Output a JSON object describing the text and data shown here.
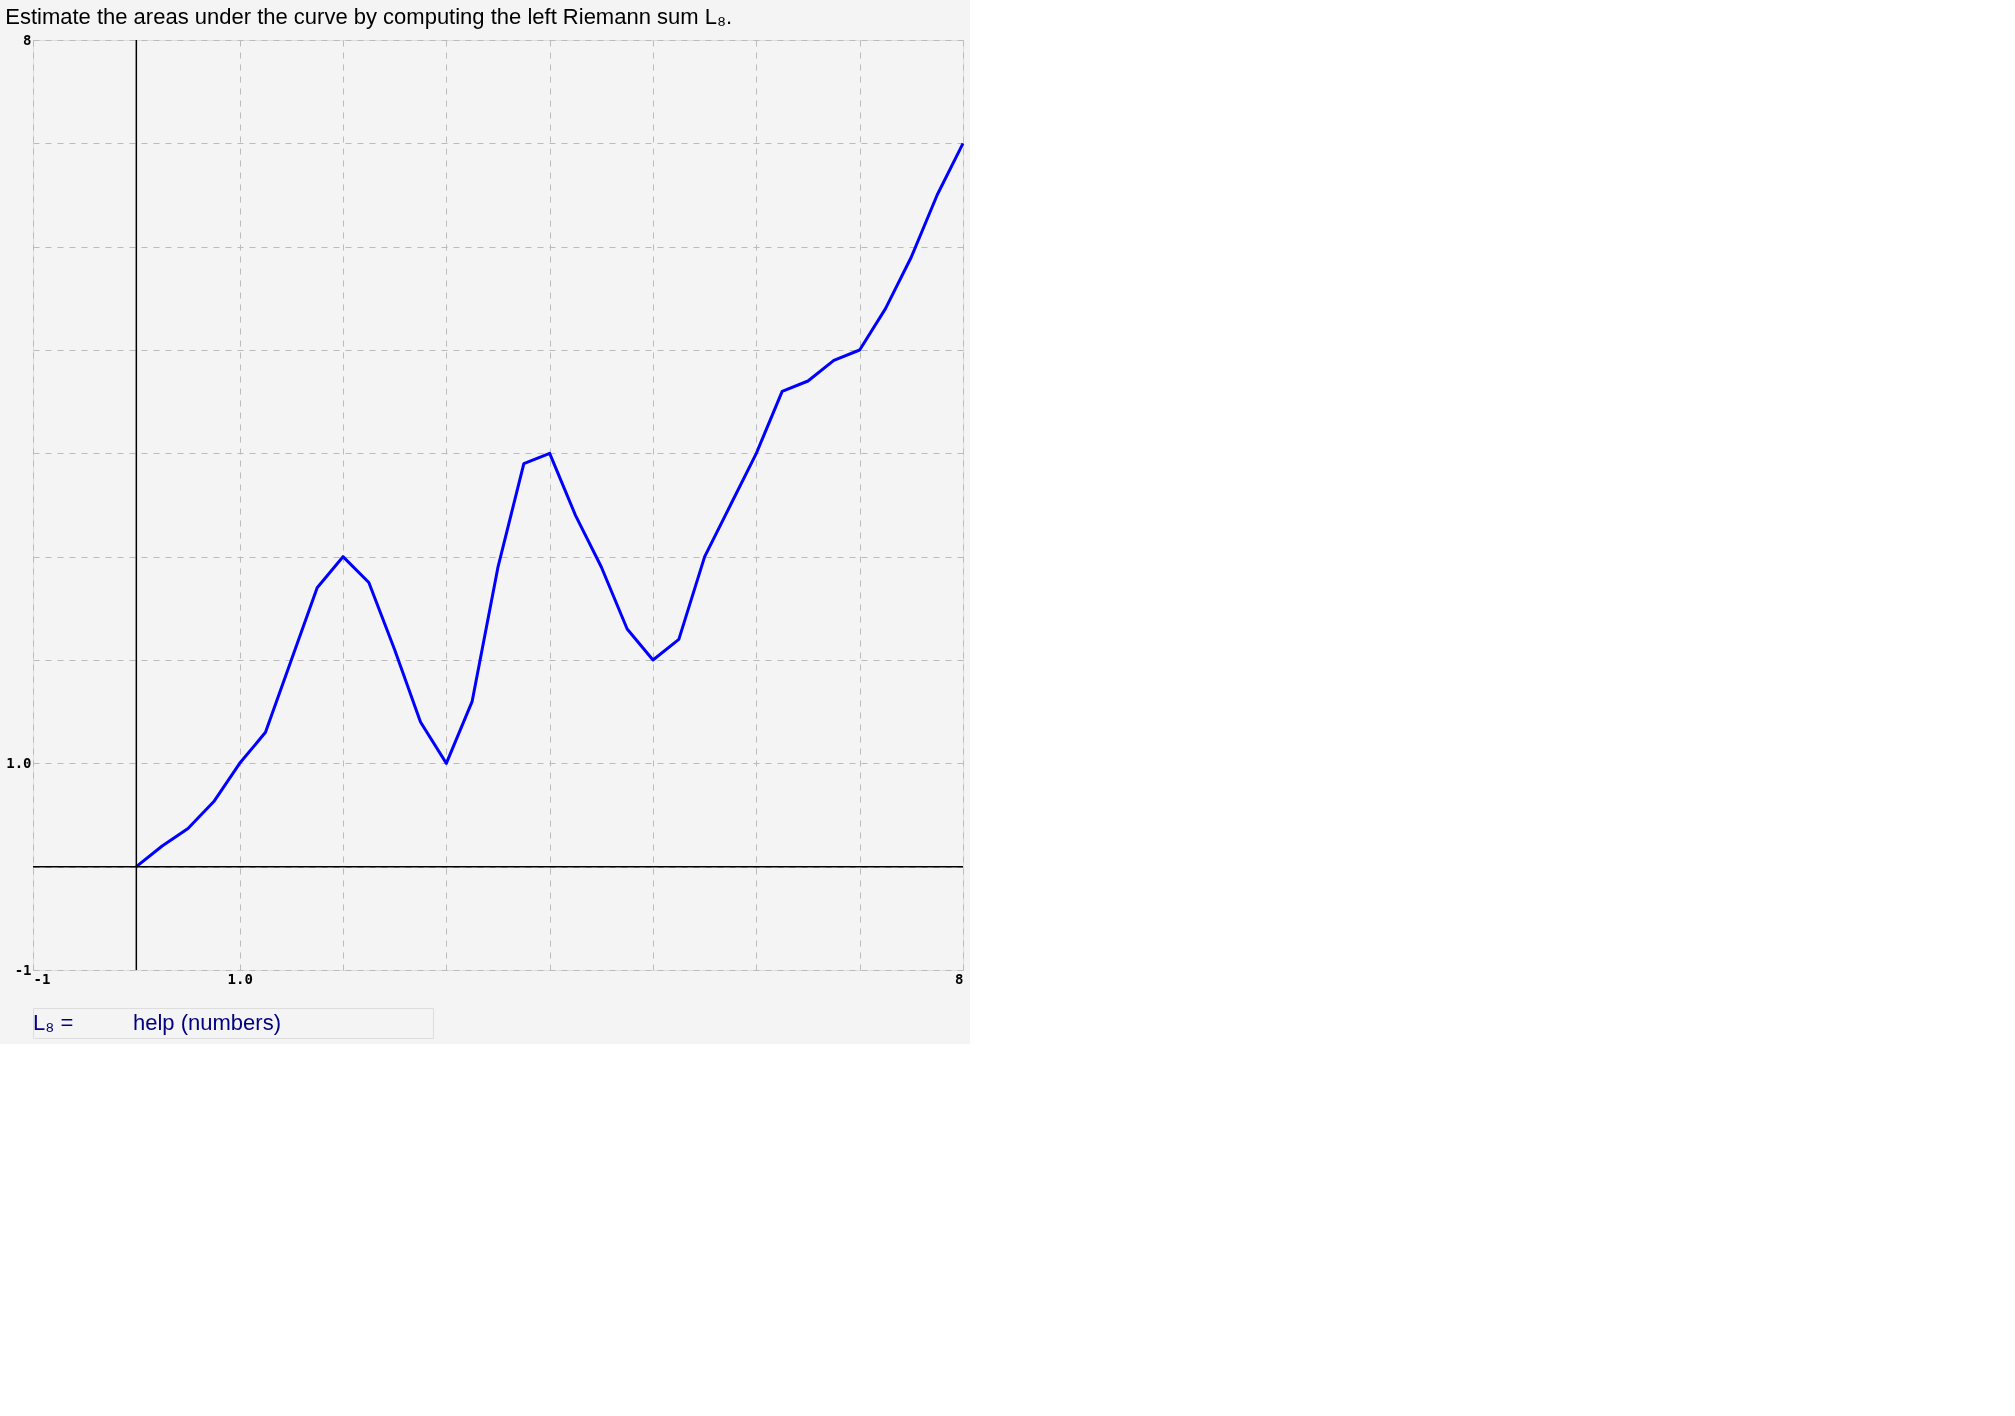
{
  "chart_data": {
    "type": "line",
    "title": "Estimate the areas under the curve by computing the left Riemann sum L₈.",
    "x": [
      0,
      0.25,
      0.5,
      0.75,
      1,
      1.25,
      1.5,
      1.75,
      2,
      2.25,
      2.5,
      2.75,
      3,
      3.25,
      3.5,
      3.75,
      4,
      4.25,
      4.5,
      4.75,
      5,
      5.25,
      5.5,
      5.75,
      6,
      6.25,
      6.5,
      6.75,
      7,
      7.25,
      7.5,
      7.75,
      8
    ],
    "series": [
      {
        "color": "#0000ff",
        "values": [
          0,
          0.2,
          0.37,
          0.63,
          1,
          1.3,
          2.0,
          2.7,
          3,
          2.75,
          2.1,
          1.4,
          1,
          1.6,
          2.9,
          3.9,
          4,
          3.4,
          2.9,
          2.3,
          2,
          2.2,
          3.0,
          3.5,
          4,
          4.6,
          4.7,
          4.9,
          5,
          5.4,
          5.9,
          6.5,
          7
        ]
      }
    ],
    "xlim": [
      -1,
      8
    ],
    "ylim": [
      -1,
      8
    ],
    "xticks": [
      -1,
      {
        "value": 0,
        "label": null
      },
      {
        "value": 1,
        "label": "1.0"
      },
      {
        "value": 2,
        "label": null
      },
      {
        "value": 3,
        "label": null
      },
      {
        "value": 4,
        "label": null
      },
      {
        "value": 5,
        "label": null
      },
      {
        "value": 6,
        "label": null
      },
      {
        "value": 7,
        "label": null
      },
      8
    ],
    "yticks": [
      -1,
      {
        "value": 0,
        "label": null
      },
      {
        "value": 1,
        "label": "1.0"
      },
      {
        "value": 2,
        "label": null
      },
      {
        "value": 3,
        "label": null
      },
      {
        "value": 4,
        "label": null
      },
      {
        "value": 5,
        "label": null
      },
      {
        "value": 6,
        "label": null
      },
      {
        "value": 7,
        "label": null
      },
      8
    ],
    "grid": true,
    "marker": "none",
    "line_style": "solid",
    "annotations": [
      "L₈ =",
      "help (numbers)"
    ]
  }
}
